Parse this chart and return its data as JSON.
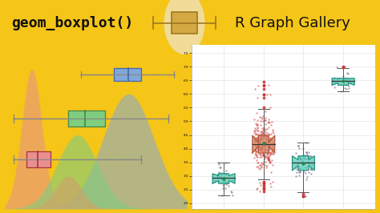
{
  "bg_color": "#f5c518",
  "header_bg": "#ffffff",
  "header_text": "geom_boxplot()",
  "header_text2": "R Graph Gallery",
  "left_panel_bg": "#ffffff",
  "right_panel_bg": "#ffffff",
  "left_border_color": "#e8c840",
  "salmon_color": "#e89090",
  "green_color": "#80cc80",
  "blue_color": "#80a8d8",
  "brown_color": "#c8a868",
  "teal_color": "#4dc8b0",
  "orange_color": "#d08060",
  "red_dot_color": "#cc3333",
  "box_icon_fill": "#d4a843",
  "box_icon_outline": "#a07820",
  "icon_circle_color": "#f0dc98",
  "gray_whisker": "#888888",
  "dark_green": "#228844"
}
